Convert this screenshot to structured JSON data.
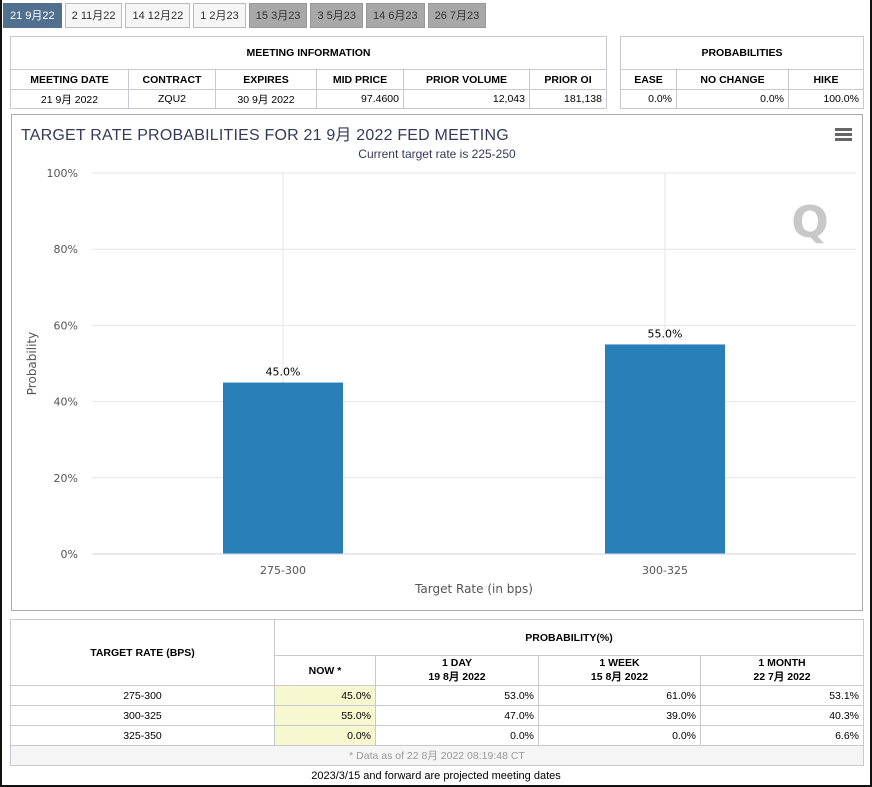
{
  "tabs": [
    {
      "label": "21 9月22",
      "state": "active"
    },
    {
      "label": "2 11月22",
      "state": "normal"
    },
    {
      "label": "14 12月22",
      "state": "normal"
    },
    {
      "label": "1 2月23",
      "state": "normal"
    },
    {
      "label": "15 3月23",
      "state": "projected"
    },
    {
      "label": "3 5月23",
      "state": "projected"
    },
    {
      "label": "14 6月23",
      "state": "projected"
    },
    {
      "label": "26 7月23",
      "state": "projected"
    }
  ],
  "meeting": {
    "title": "MEETING INFORMATION",
    "headers": [
      "MEETING DATE",
      "CONTRACT",
      "EXPIRES",
      "MID PRICE",
      "PRIOR VOLUME",
      "PRIOR OI"
    ],
    "values": [
      "21 9月 2022",
      "ZQU2",
      "30 9月 2022",
      "97.4600",
      "12,043",
      "181,138"
    ]
  },
  "probabilities": {
    "title": "PROBABILITIES",
    "headers": [
      "EASE",
      "NO CHANGE",
      "HIKE"
    ],
    "values": [
      "0.0%",
      "0.0%",
      "100.0%"
    ]
  },
  "chart_data": {
    "type": "bar",
    "title": "TARGET RATE PROBABILITIES FOR 21 9月 2022 FED MEETING",
    "subtitle": "Current target rate is 225-250",
    "categories": [
      "275-300",
      "300-325"
    ],
    "values": [
      45.0,
      55.0
    ],
    "data_labels": [
      "45.0%",
      "55.0%"
    ],
    "xlabel": "Target Rate (in bps)",
    "ylabel": "Probability",
    "ylim": [
      0,
      100
    ],
    "yticks": [
      "0%",
      "20%",
      "40%",
      "60%",
      "80%",
      "100%"
    ],
    "color": "#2980b9",
    "grid": true
  },
  "bottom": {
    "rate_header": "TARGET RATE (BPS)",
    "prob_header": "PROBABILITY(%)",
    "cols": [
      {
        "l1": "NOW *",
        "l2": ""
      },
      {
        "l1": "1 DAY",
        "l2": "19 8月 2022"
      },
      {
        "l1": "1 WEEK",
        "l2": "15 8月 2022"
      },
      {
        "l1": "1 MONTH",
        "l2": "22 7月 2022"
      }
    ],
    "rows": [
      {
        "rate": "275-300",
        "v": [
          "45.0%",
          "53.0%",
          "61.0%",
          "53.1%"
        ]
      },
      {
        "rate": "300-325",
        "v": [
          "55.0%",
          "47.0%",
          "39.0%",
          "40.3%"
        ]
      },
      {
        "rate": "325-350",
        "v": [
          "0.0%",
          "0.0%",
          "0.0%",
          "6.6%"
        ]
      }
    ],
    "note": "* Data as of 22 8月 2022 08:19:48 CT"
  },
  "footer": "2023/3/15 and forward are projected meeting dates"
}
